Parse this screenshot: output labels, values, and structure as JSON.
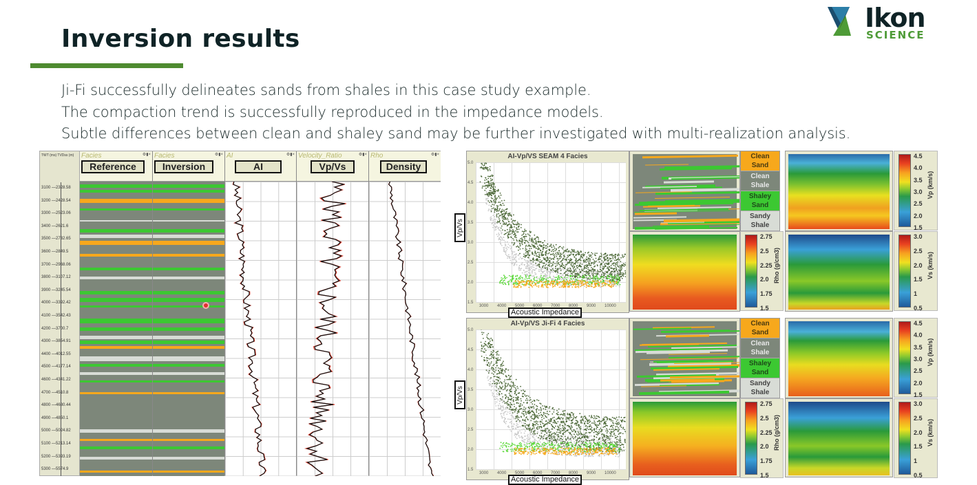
{
  "slide": {
    "title": "Inversion results",
    "bullets": [
      "Ji-Fi successfully delineates sands from shales in this case study example.",
      "The compaction trend is successfully reproduced in the impedance models.",
      "Subtle differences between clean and shaley sand may be further investigated with multi-realization analysis."
    ],
    "accent_color": "#4e8b30"
  },
  "logo": {
    "name": "Ikon",
    "sub": "SCIENCE"
  },
  "well_log": {
    "axis_header": "TWT (ms)  TVDss (m)",
    "depths": [
      {
        "twt": "3100",
        "tvd": "2328.58"
      },
      {
        "twt": "3200",
        "tvd": "2428.54"
      },
      {
        "twt": "3300",
        "tvd": "2523.06"
      },
      {
        "twt": "3400",
        "tvd": "2621.6"
      },
      {
        "twt": "3500",
        "tvd": "2732.65"
      },
      {
        "twt": "3600",
        "tvd": "2849.5"
      },
      {
        "twt": "3700",
        "tvd": "2968.06"
      },
      {
        "twt": "3800",
        "tvd": "3107.12"
      },
      {
        "twt": "3900",
        "tvd": "3245.54"
      },
      {
        "twt": "4000",
        "tvd": "3392.42"
      },
      {
        "twt": "4100",
        "tvd": "3542.43"
      },
      {
        "twt": "4200",
        "tvd": "3700.7"
      },
      {
        "twt": "4300",
        "tvd": "3854.91"
      },
      {
        "twt": "4400",
        "tvd": "4012.55"
      },
      {
        "twt": "4500",
        "tvd": "4177.14"
      },
      {
        "twt": "4600",
        "tvd": "4341.22"
      },
      {
        "twt": "4700",
        "tvd": "4510.8"
      },
      {
        "twt": "4800",
        "tvd": "4680.44"
      },
      {
        "twt": "4900",
        "tvd": "4850.1"
      },
      {
        "twt": "5000",
        "tvd": "5024.82"
      },
      {
        "twt": "5100",
        "tvd": "5213.14"
      },
      {
        "twt": "5200",
        "tvd": "5393.19"
      },
      {
        "twt": "5300",
        "tvd": "5574.9"
      }
    ],
    "tracks": [
      {
        "name": "Facies",
        "label": "Reference"
      },
      {
        "name": "Facies",
        "label": "Inversion"
      },
      {
        "name": "AI",
        "label": "AI"
      },
      {
        "name": "Velocity_Ratio",
        "label": "Vp/Vs"
      },
      {
        "name": "Rho",
        "label": "Density"
      }
    ],
    "track_controls": "⚙▮×"
  },
  "crossplots": [
    {
      "title": "AI-Vp/VS   SEAM   4 Facies",
      "xlabel": "Acoustic Impedance",
      "ylabel": "Vp/Vs",
      "yticks": [
        "5.0",
        "4.5",
        "4.0",
        "3.5",
        "3.0",
        "2.5",
        "2.0",
        "1.5"
      ],
      "xticks": [
        "3000",
        "4000",
        "5000",
        "6000",
        "7000",
        "8000",
        "9000",
        "10000"
      ]
    },
    {
      "title": "AI-Vp/VS   Ji-Fi   4 Facies",
      "xlabel": "Acoustic Impedance",
      "ylabel": "Vp/Vs",
      "yticks": [
        "5.0",
        "4.5",
        "4.0",
        "3.5",
        "3.0",
        "2.5",
        "2.0",
        "1.5"
      ],
      "xticks": [
        "3000",
        "4000",
        "5000",
        "6000",
        "7000",
        "8000",
        "9000",
        "10000"
      ]
    }
  ],
  "facies_legend": [
    {
      "label": "Clean Sand",
      "color": "#f7a81c",
      "text_color": "#4a3a10"
    },
    {
      "label": "Clean Shale",
      "color": "#7d877a",
      "text_color": "#e8e8e8"
    },
    {
      "label": "Shaley Sand",
      "color": "#3cc832",
      "text_color": "#1e4a1a"
    },
    {
      "label": "Sandy Shale",
      "color": "#d8dcd6",
      "text_color": "#444444"
    }
  ],
  "colorbars": {
    "vp": {
      "label": "Vp (km/s)",
      "ticks": [
        "4.5",
        "4.0",
        "3.5",
        "3.0",
        "2.5",
        "2.0",
        "1.5"
      ]
    },
    "vs": {
      "label": "Vs (km/s)",
      "ticks": [
        "3.0",
        "2.5",
        "2.0",
        "1.5",
        "1",
        "0.5"
      ]
    },
    "rho": {
      "label": "Rho (g/cm3)",
      "ticks": [
        "2.75",
        "2.5",
        "2.25",
        "2.0",
        "1.75",
        "1.5"
      ]
    }
  }
}
